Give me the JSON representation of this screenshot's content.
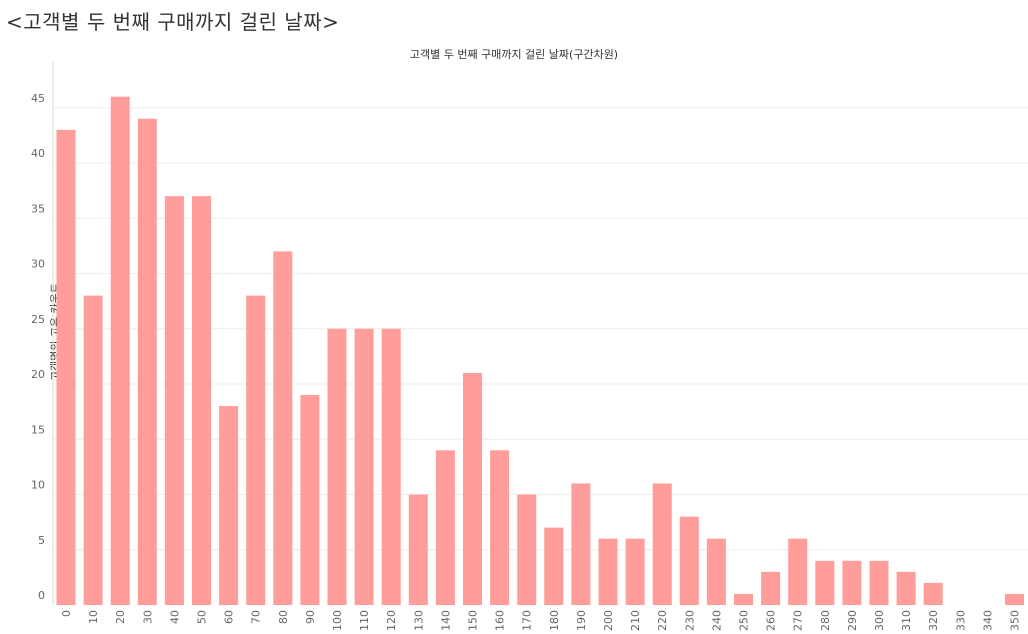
{
  "page": {
    "title": "<고객별 두 번째 구매까지 걸린 날짜>"
  },
  "chart_data": {
    "type": "bar",
    "title": "고객별 두 번째 구매까지 걸린 날짜(구간차원)",
    "xlabel": "",
    "ylabel": "고객명의 고유 카운트",
    "categories": [
      "0",
      "10",
      "20",
      "30",
      "40",
      "50",
      "60",
      "70",
      "80",
      "90",
      "100",
      "110",
      "120",
      "130",
      "140",
      "150",
      "160",
      "170",
      "180",
      "190",
      "200",
      "210",
      "220",
      "230",
      "240",
      "250",
      "260",
      "270",
      "280",
      "290",
      "300",
      "310",
      "320",
      "330",
      "340",
      "350"
    ],
    "values": [
      43,
      28,
      46,
      44,
      37,
      37,
      18,
      28,
      32,
      19,
      25,
      25,
      25,
      10,
      14,
      21,
      14,
      10,
      7,
      11,
      6,
      6,
      11,
      8,
      6,
      1,
      3,
      6,
      4,
      4,
      4,
      3,
      2,
      0,
      0,
      1
    ],
    "ylim": [
      0,
      46
    ],
    "yticks": [
      0,
      5,
      10,
      15,
      20,
      25,
      30,
      35,
      40,
      45
    ],
    "grid": true,
    "bar_color": "#ff9d9a",
    "gridline_color": "#ececec",
    "axis_color": "#d9d9d9"
  }
}
